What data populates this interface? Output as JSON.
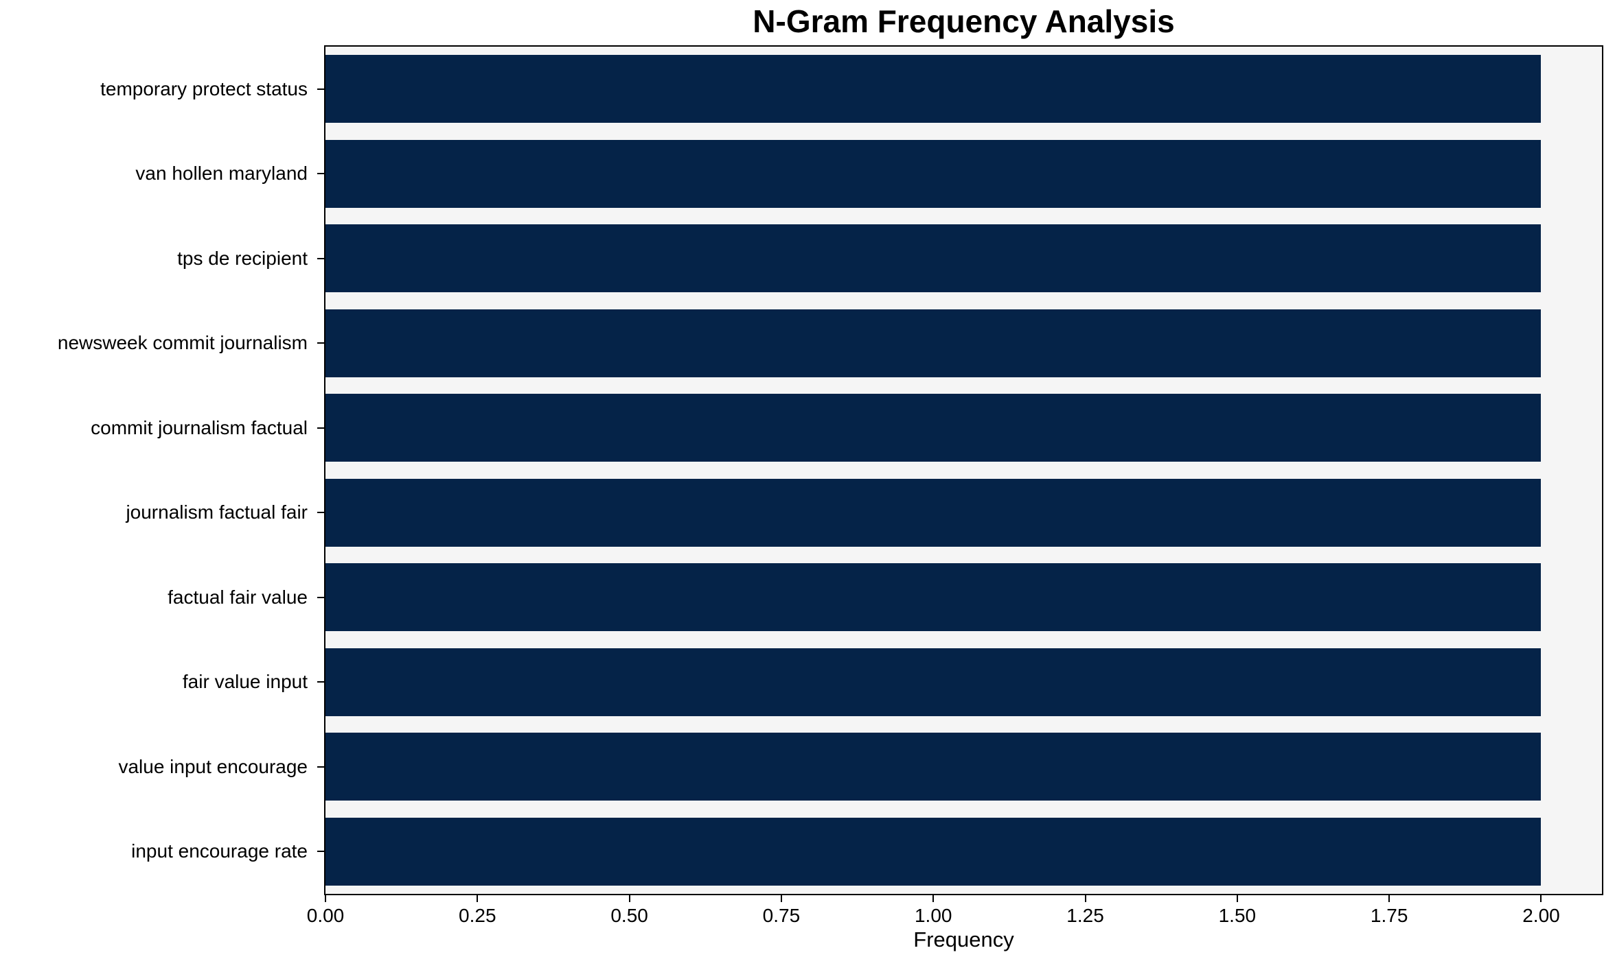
{
  "chart_data": {
    "type": "bar",
    "orientation": "horizontal",
    "title": "N-Gram Frequency Analysis",
    "xlabel": "Frequency",
    "ylabel": "",
    "categories": [
      "temporary protect status",
      "van hollen maryland",
      "tps de recipient",
      "newsweek commit journalism",
      "commit journalism factual",
      "journalism factual fair",
      "factual fair value",
      "fair value input",
      "value input encourage",
      "input encourage rate"
    ],
    "values": [
      2,
      2,
      2,
      2,
      2,
      2,
      2,
      2,
      2,
      2
    ],
    "xlim": [
      0,
      2.1
    ],
    "xtick_labels": [
      "0.00",
      "0.25",
      "0.50",
      "0.75",
      "1.00",
      "1.25",
      "1.50",
      "1.75",
      "2.00"
    ],
    "bar_height_fraction": 0.8,
    "grid": false,
    "legend": null,
    "colors": {
      "bar": "#052348",
      "plot_background": "#f5f5f5",
      "figure_background": "#ffffff",
      "axis": "#000000",
      "text": "#000000"
    }
  }
}
